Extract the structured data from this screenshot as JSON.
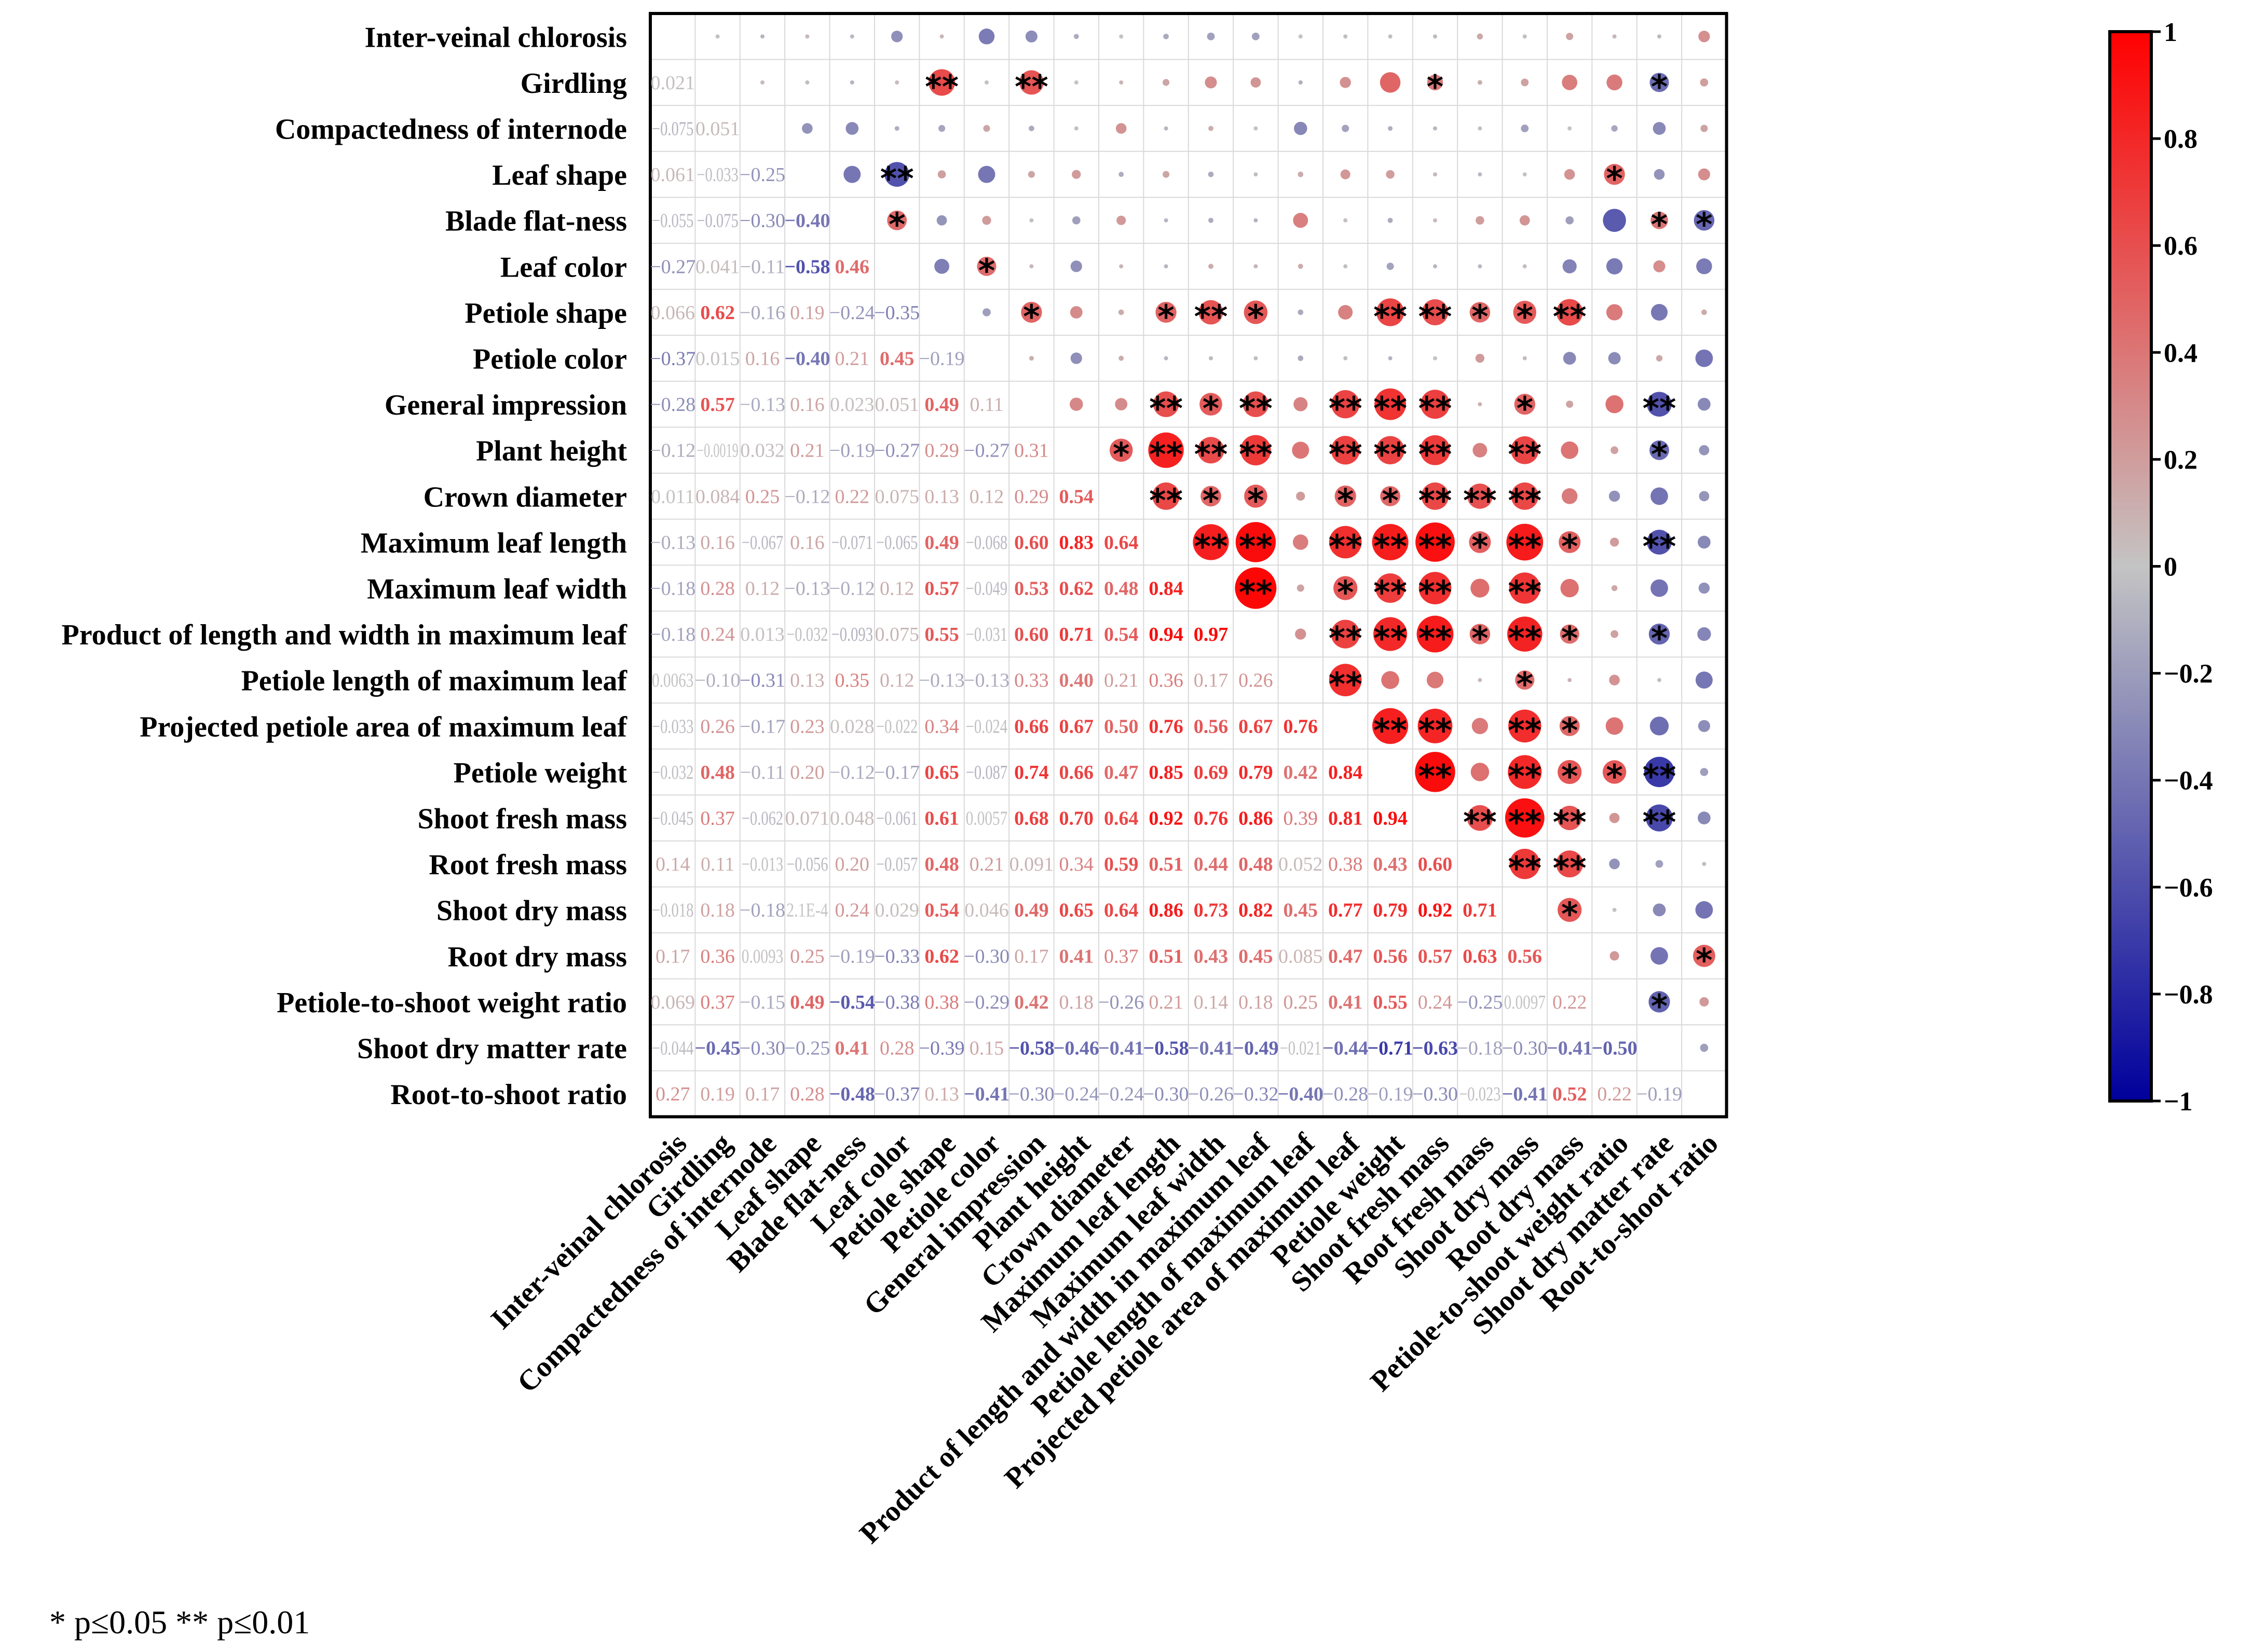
{
  "chart_data": {
    "type": "heatmap",
    "subtype": "correlation-matrix (upper: circles sized/colored by r with significance stars; lower: r values as colored text)",
    "variables": [
      "Inter-veinal chlorosis",
      "Girdling",
      "Compactedness of internode",
      "Leaf shape",
      "Blade flat-ness",
      "Leaf color",
      "Petiole shape",
      "Petiole color",
      "General impression",
      "Plant height",
      "Crown diameter",
      "Maximum leaf length",
      "Maximum leaf width",
      "Product of length and width in maximum leaf",
      "Petiole length of maximum leaf",
      "Projected petiole area of maximum leaf",
      "Petiole weight",
      "Shoot fresh mass",
      "Root fresh mass",
      "Shoot dry mass",
      "Root dry mass",
      "Petiole-to-shoot weight ratio",
      "Shoot dry matter rate",
      "Root-to-shoot ratio"
    ],
    "lower_triangle_labels": [
      [],
      [
        "0.021"
      ],
      [
        "−0.075",
        "0.051"
      ],
      [
        "0.061",
        "−0.033",
        "−0.25"
      ],
      [
        "−0.055",
        "−0.075",
        "−0.30",
        "−0.40"
      ],
      [
        "−0.27",
        "0.041",
        "−0.11",
        "−0.58",
        "0.46"
      ],
      [
        "0.066",
        "0.62",
        "−0.16",
        "0.19",
        "−0.24",
        "−0.35"
      ],
      [
        "−0.37",
        "0.015",
        "0.16",
        "−0.40",
        "0.21",
        "0.45",
        "−0.19"
      ],
      [
        "−0.28",
        "0.57",
        "−0.13",
        "0.16",
        "0.023",
        "0.051",
        "0.49",
        "0.11"
      ],
      [
        "−0.12",
        "−0.0019",
        "0.032",
        "0.21",
        "−0.19",
        "−0.27",
        "0.29",
        "−0.27",
        "0.31"
      ],
      [
        "0.011",
        "0.084",
        "0.25",
        "−0.12",
        "0.22",
        "0.075",
        "0.13",
        "0.12",
        "0.29",
        "0.54"
      ],
      [
        "−0.13",
        "0.16",
        "−0.067",
        "0.16",
        "−0.071",
        "−0.065",
        "0.49",
        "−0.068",
        "0.60",
        "0.83",
        "0.64"
      ],
      [
        "−0.18",
        "0.28",
        "0.12",
        "−0.13",
        "−0.12",
        "0.12",
        "0.57",
        "−0.049",
        "0.53",
        "0.62",
        "0.48",
        "0.84"
      ],
      [
        "−0.18",
        "0.24",
        "0.013",
        "−0.032",
        "−0.093",
        "0.075",
        "0.55",
        "−0.031",
        "0.60",
        "0.71",
        "0.54",
        "0.94",
        "0.97"
      ],
      [
        "0.0063",
        "−0.10",
        "−0.31",
        "0.13",
        "0.35",
        "0.12",
        "−0.13",
        "−0.13",
        "0.33",
        "0.40",
        "0.21",
        "0.36",
        "0.17",
        "0.26"
      ],
      [
        "−0.033",
        "0.26",
        "−0.17",
        "0.23",
        "0.028",
        "−0.022",
        "0.34",
        "−0.024",
        "0.66",
        "0.67",
        "0.50",
        "0.76",
        "0.56",
        "0.67",
        "0.76"
      ],
      [
        "−0.032",
        "0.48",
        "−0.11",
        "0.20",
        "−0.12",
        "−0.17",
        "0.65",
        "−0.087",
        "0.74",
        "0.66",
        "0.47",
        "0.85",
        "0.69",
        "0.79",
        "0.42",
        "0.84"
      ],
      [
        "−0.045",
        "0.37",
        "−0.062",
        "0.071",
        "0.048",
        "−0.061",
        "0.61",
        "0.0057",
        "0.68",
        "0.70",
        "0.64",
        "0.92",
        "0.76",
        "0.86",
        "0.39",
        "0.81",
        "0.94"
      ],
      [
        "0.14",
        "0.11",
        "−0.013",
        "−0.056",
        "0.20",
        "−0.057",
        "0.48",
        "0.21",
        "0.091",
        "0.34",
        "0.59",
        "0.51",
        "0.44",
        "0.48",
        "0.052",
        "0.38",
        "0.43",
        "0.60"
      ],
      [
        "−0.018",
        "0.18",
        "−0.18",
        "2.1E-4",
        "0.24",
        "0.029",
        "0.54",
        "0.046",
        "0.49",
        "0.65",
        "0.64",
        "0.86",
        "0.73",
        "0.82",
        "0.45",
        "0.77",
        "0.79",
        "0.92",
        "0.71"
      ],
      [
        "0.17",
        "0.36",
        "0.0093",
        "0.25",
        "−0.19",
        "−0.33",
        "0.62",
        "−0.30",
        "0.17",
        "0.41",
        "0.37",
        "0.51",
        "0.43",
        "0.45",
        "0.085",
        "0.47",
        "0.56",
        "0.57",
        "0.63",
        "0.56"
      ],
      [
        "0.069",
        "0.37",
        "−0.15",
        "0.49",
        "−0.54",
        "−0.38",
        "0.38",
        "−0.29",
        "0.42",
        "0.18",
        "−0.26",
        "0.21",
        "0.14",
        "0.18",
        "0.25",
        "0.41",
        "0.55",
        "0.24",
        "−0.25",
        "0.0097",
        "0.22"
      ],
      [
        "−0.044",
        "−0.45",
        "−0.30",
        "−0.25",
        "0.41",
        "0.28",
        "−0.39",
        "0.15",
        "−0.58",
        "−0.46",
        "−0.41",
        "−0.58",
        "−0.41",
        "−0.49",
        "−0.021",
        "−0.44",
        "−0.71",
        "−0.63",
        "−0.18",
        "−0.30",
        "−0.41",
        "−0.50"
      ],
      [
        "0.27",
        "0.19",
        "0.17",
        "0.28",
        "−0.48",
        "−0.37",
        "0.13",
        "−0.41",
        "−0.30",
        "−0.24",
        "−0.24",
        "−0.30",
        "−0.26",
        "−0.32",
        "−0.40",
        "−0.28",
        "−0.19",
        "−0.30",
        "−0.023",
        "−0.41",
        "0.52",
        "0.22",
        "−0.19"
      ]
    ],
    "significance": [
      {
        "row": 1,
        "col": 6,
        "stars": "**"
      },
      {
        "row": 1,
        "col": 8,
        "stars": "**"
      },
      {
        "row": 1,
        "col": 17,
        "stars": "*"
      },
      {
        "row": 1,
        "col": 22,
        "stars": "*"
      },
      {
        "row": 3,
        "col": 5,
        "stars": "**"
      },
      {
        "row": 3,
        "col": 21,
        "stars": "*"
      },
      {
        "row": 4,
        "col": 5,
        "stars": "*"
      },
      {
        "row": 4,
        "col": 22,
        "stars": "*"
      },
      {
        "row": 4,
        "col": 23,
        "stars": "*"
      },
      {
        "row": 5,
        "col": 7,
        "stars": "*"
      },
      {
        "row": 6,
        "col": 8,
        "stars": "*"
      },
      {
        "row": 6,
        "col": 11,
        "stars": "*"
      },
      {
        "row": 6,
        "col": 12,
        "stars": "**"
      },
      {
        "row": 6,
        "col": 13,
        "stars": "*"
      },
      {
        "row": 6,
        "col": 16,
        "stars": "**"
      },
      {
        "row": 6,
        "col": 17,
        "stars": "**"
      },
      {
        "row": 6,
        "col": 18,
        "stars": "*"
      },
      {
        "row": 6,
        "col": 19,
        "stars": "*"
      },
      {
        "row": 6,
        "col": 20,
        "stars": "**"
      },
      {
        "row": 8,
        "col": 11,
        "stars": "**"
      },
      {
        "row": 8,
        "col": 12,
        "stars": "*"
      },
      {
        "row": 8,
        "col": 13,
        "stars": "**"
      },
      {
        "row": 8,
        "col": 15,
        "stars": "**"
      },
      {
        "row": 8,
        "col": 16,
        "stars": "**"
      },
      {
        "row": 8,
        "col": 17,
        "stars": "**"
      },
      {
        "row": 8,
        "col": 19,
        "stars": "*"
      },
      {
        "row": 8,
        "col": 22,
        "stars": "**"
      },
      {
        "row": 9,
        "col": 10,
        "stars": "*"
      },
      {
        "row": 9,
        "col": 11,
        "stars": "**"
      },
      {
        "row": 9,
        "col": 12,
        "stars": "**"
      },
      {
        "row": 9,
        "col": 13,
        "stars": "**"
      },
      {
        "row": 9,
        "col": 15,
        "stars": "**"
      },
      {
        "row": 9,
        "col": 16,
        "stars": "**"
      },
      {
        "row": 9,
        "col": 17,
        "stars": "**"
      },
      {
        "row": 9,
        "col": 19,
        "stars": "**"
      },
      {
        "row": 9,
        "col": 22,
        "stars": "*"
      },
      {
        "row": 10,
        "col": 11,
        "stars": "**"
      },
      {
        "row": 10,
        "col": 12,
        "stars": "*"
      },
      {
        "row": 10,
        "col": 13,
        "stars": "*"
      },
      {
        "row": 10,
        "col": 15,
        "stars": "*"
      },
      {
        "row": 10,
        "col": 16,
        "stars": "*"
      },
      {
        "row": 10,
        "col": 17,
        "stars": "**"
      },
      {
        "row": 10,
        "col": 18,
        "stars": "**"
      },
      {
        "row": 10,
        "col": 19,
        "stars": "**"
      },
      {
        "row": 11,
        "col": 12,
        "stars": "**"
      },
      {
        "row": 11,
        "col": 13,
        "stars": "**"
      },
      {
        "row": 11,
        "col": 15,
        "stars": "**"
      },
      {
        "row": 11,
        "col": 16,
        "stars": "**"
      },
      {
        "row": 11,
        "col": 17,
        "stars": "**"
      },
      {
        "row": 11,
        "col": 18,
        "stars": "*"
      },
      {
        "row": 11,
        "col": 19,
        "stars": "**"
      },
      {
        "row": 11,
        "col": 20,
        "stars": "*"
      },
      {
        "row": 11,
        "col": 22,
        "stars": "**"
      },
      {
        "row": 12,
        "col": 13,
        "stars": "**"
      },
      {
        "row": 12,
        "col": 15,
        "stars": "*"
      },
      {
        "row": 12,
        "col": 16,
        "stars": "**"
      },
      {
        "row": 12,
        "col": 17,
        "stars": "**"
      },
      {
        "row": 12,
        "col": 19,
        "stars": "**"
      },
      {
        "row": 13,
        "col": 15,
        "stars": "**"
      },
      {
        "row": 13,
        "col": 16,
        "stars": "**"
      },
      {
        "row": 13,
        "col": 17,
        "stars": "**"
      },
      {
        "row": 13,
        "col": 18,
        "stars": "*"
      },
      {
        "row": 13,
        "col": 19,
        "stars": "**"
      },
      {
        "row": 13,
        "col": 20,
        "stars": "*"
      },
      {
        "row": 13,
        "col": 22,
        "stars": "*"
      },
      {
        "row": 14,
        "col": 15,
        "stars": "**"
      },
      {
        "row": 14,
        "col": 19,
        "stars": "*"
      },
      {
        "row": 15,
        "col": 16,
        "stars": "**"
      },
      {
        "row": 15,
        "col": 17,
        "stars": "**"
      },
      {
        "row": 15,
        "col": 19,
        "stars": "**"
      },
      {
        "row": 15,
        "col": 20,
        "stars": "*"
      },
      {
        "row": 16,
        "col": 17,
        "stars": "**"
      },
      {
        "row": 16,
        "col": 19,
        "stars": "**"
      },
      {
        "row": 16,
        "col": 20,
        "stars": "*"
      },
      {
        "row": 16,
        "col": 21,
        "stars": "*"
      },
      {
        "row": 16,
        "col": 22,
        "stars": "**"
      },
      {
        "row": 17,
        "col": 18,
        "stars": "**"
      },
      {
        "row": 17,
        "col": 19,
        "stars": "**"
      },
      {
        "row": 17,
        "col": 20,
        "stars": "**"
      },
      {
        "row": 17,
        "col": 22,
        "stars": "**"
      },
      {
        "row": 18,
        "col": 19,
        "stars": "**"
      },
      {
        "row": 18,
        "col": 20,
        "stars": "**"
      },
      {
        "row": 19,
        "col": 20,
        "stars": "*"
      },
      {
        "row": 20,
        "col": 23,
        "stars": "*"
      },
      {
        "row": 21,
        "col": 22,
        "stars": "*"
      }
    ],
    "colorbar": {
      "range": [
        -1,
        1
      ],
      "ticks": [
        "1",
        "0.8",
        "0.6",
        "0.4",
        "0.2",
        "0",
        "−0.2",
        "−0.4",
        "−0.6",
        "−0.8",
        "−1"
      ],
      "colors": {
        "low": "#00009c",
        "mid": "#c4c4c4",
        "high": "#ff0000"
      }
    },
    "footnote": "* p≤0.05  ** p≤0.01"
  }
}
